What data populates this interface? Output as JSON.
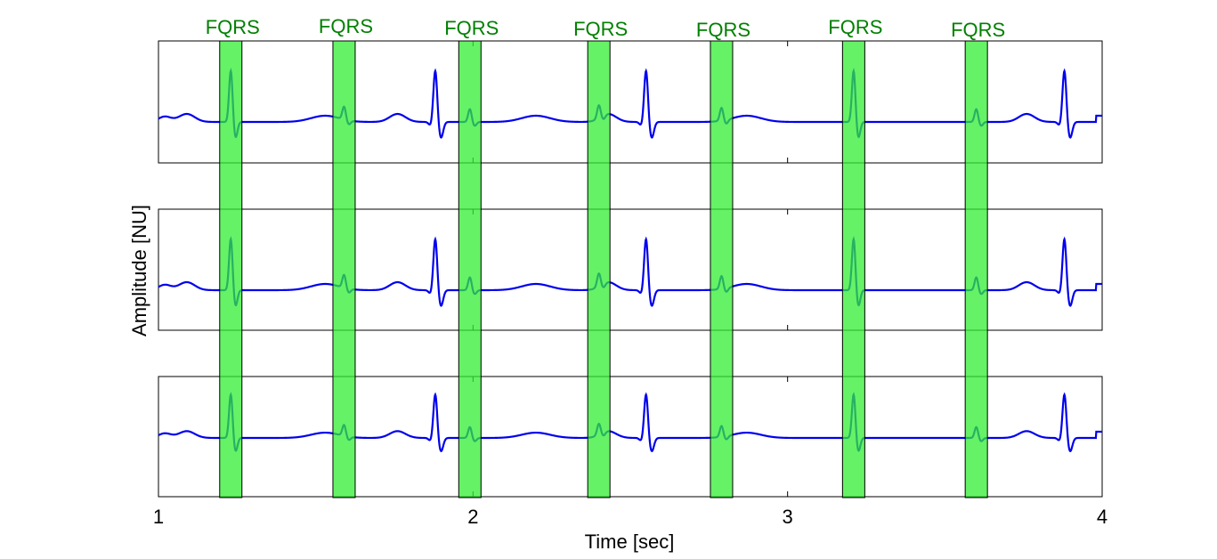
{
  "chart_data": {
    "type": "line",
    "title": "",
    "xlabel": "Time [sec]",
    "ylabel": "Amplitude [NU]",
    "xlim": [
      1,
      4
    ],
    "xticks": [
      "1",
      "2",
      "3",
      "4"
    ],
    "panels": 3,
    "grid": false,
    "series_color": "#0000ee",
    "highlight_color": "#33ee33",
    "highlight_label_color": "#008000",
    "fetal_qrs": {
      "label": "FQRS",
      "times": [
        1.23,
        1.59,
        1.99,
        2.4,
        2.79,
        3.21,
        3.6
      ]
    },
    "maternal_qrs_times": [
      1.88,
      2.55,
      3.88
    ],
    "signal_color_in_highlight": "#108870"
  }
}
